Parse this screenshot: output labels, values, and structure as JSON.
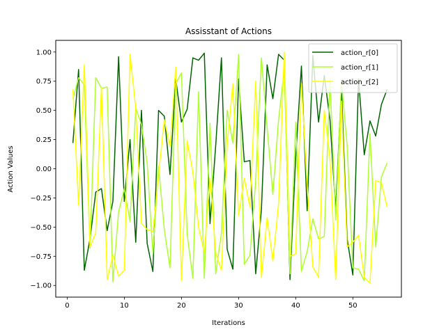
{
  "chart_data": {
    "type": "line",
    "title": "Assisstant of Actions",
    "xlabel": "Iterations",
    "ylabel": "Action Values",
    "xlim": [
      -2.0,
      58.5
    ],
    "ylim": [
      -1.1,
      1.1
    ],
    "xticks": [
      0,
      10,
      20,
      30,
      40,
      50
    ],
    "yticks": [
      -1.0,
      -0.75,
      -0.5,
      -0.25,
      0.0,
      0.25,
      0.5,
      0.75,
      1.0
    ],
    "ytick_labels": [
      "−1.00",
      "−0.75",
      "−0.50",
      "−0.25",
      "0.00",
      "0.25",
      "0.50",
      "0.75",
      "1.00"
    ],
    "grid": false,
    "legend_position": "top-right",
    "x": [
      1,
      2,
      3,
      4,
      5,
      6,
      7,
      8,
      9,
      10,
      11,
      12,
      13,
      14,
      15,
      16,
      17,
      18,
      19,
      20,
      21,
      22,
      23,
      24,
      25,
      26,
      27,
      28,
      29,
      30,
      31,
      32,
      33,
      34,
      35,
      36,
      37,
      38,
      39,
      40,
      41,
      42,
      43,
      44,
      45,
      46,
      47,
      48,
      49,
      50,
      51,
      52,
      53,
      54,
      55,
      56
    ],
    "series": [
      {
        "name": "action_r[0]",
        "color": "#006400",
        "values": [
          0.22,
          0.85,
          -0.87,
          -0.6,
          -0.2,
          -0.17,
          -0.53,
          -0.28,
          0.96,
          -0.28,
          0.25,
          -0.63,
          0.5,
          -0.64,
          -0.88,
          0.5,
          0.45,
          -0.05,
          0.77,
          0.4,
          0.51,
          0.95,
          0.93,
          0.99,
          -0.47,
          0.2,
          0.95,
          -0.69,
          -0.86,
          0.77,
          0.06,
          0.07,
          -0.9,
          -0.35,
          0.89,
          0.6,
          0.98,
          0.93,
          -0.95,
          0.1,
          0.88,
          -0.36,
          0.97,
          0.4,
          0.8,
          0.42,
          -0.35,
          0.7,
          -0.6,
          -0.91,
          0.77,
          0.12,
          0.41,
          0.28,
          0.55,
          0.68
        ]
      },
      {
        "name": "action_r[1]",
        "color": "#ADFF2F",
        "values": [
          0.6,
          0.78,
          0.72,
          -0.68,
          0.78,
          0.69,
          0.7,
          -0.97,
          -0.37,
          -0.17,
          -0.45,
          0.52,
          0.38,
          0.05,
          -0.73,
          0.02,
          -0.52,
          -0.85,
          0.73,
          0.82,
          -0.56,
          -0.94,
          0.66,
          -0.94,
          0.39,
          -0.9,
          -0.55,
          0.5,
          0.22,
          0.98,
          -0.82,
          -0.74,
          -0.1,
          0.95,
          0.35,
          -0.22,
          0.42,
          0.85,
          -0.9,
          0.4,
          -0.88,
          -0.71,
          -0.43,
          -0.6,
          -0.58,
          0.77,
          -0.44,
          0.75,
          0.2,
          -0.85,
          -0.86,
          -0.96,
          0.3,
          -0.67,
          -0.07,
          0.05
        ]
      },
      {
        "name": "action_r[2]",
        "color": "#FFFF00",
        "values": [
          0.68,
          -0.31,
          0.89,
          -0.67,
          -0.55,
          0.7,
          -0.95,
          -0.74,
          -0.92,
          -0.87,
          0.98,
          0.52,
          -0.47,
          -0.52,
          -0.54,
          -0.05,
          0.42,
          0.19,
          0.87,
          -0.96,
          0.24,
          -0.03,
          -0.5,
          -0.72,
          -0.08,
          -0.72,
          -0.87,
          0.2,
          0.73,
          -0.4,
          -0.08,
          -0.33,
          0.75,
          -0.93,
          -0.42,
          -0.79,
          -0.3,
          1.0,
          -0.75,
          -0.73,
          0.73,
          -0.14,
          -0.84,
          -0.93,
          0.5,
          0.09,
          -0.95,
          0.58,
          -0.67,
          -0.63,
          -0.57,
          -0.93,
          -0.98,
          -0.1,
          -0.12,
          -0.33
        ]
      }
    ]
  }
}
